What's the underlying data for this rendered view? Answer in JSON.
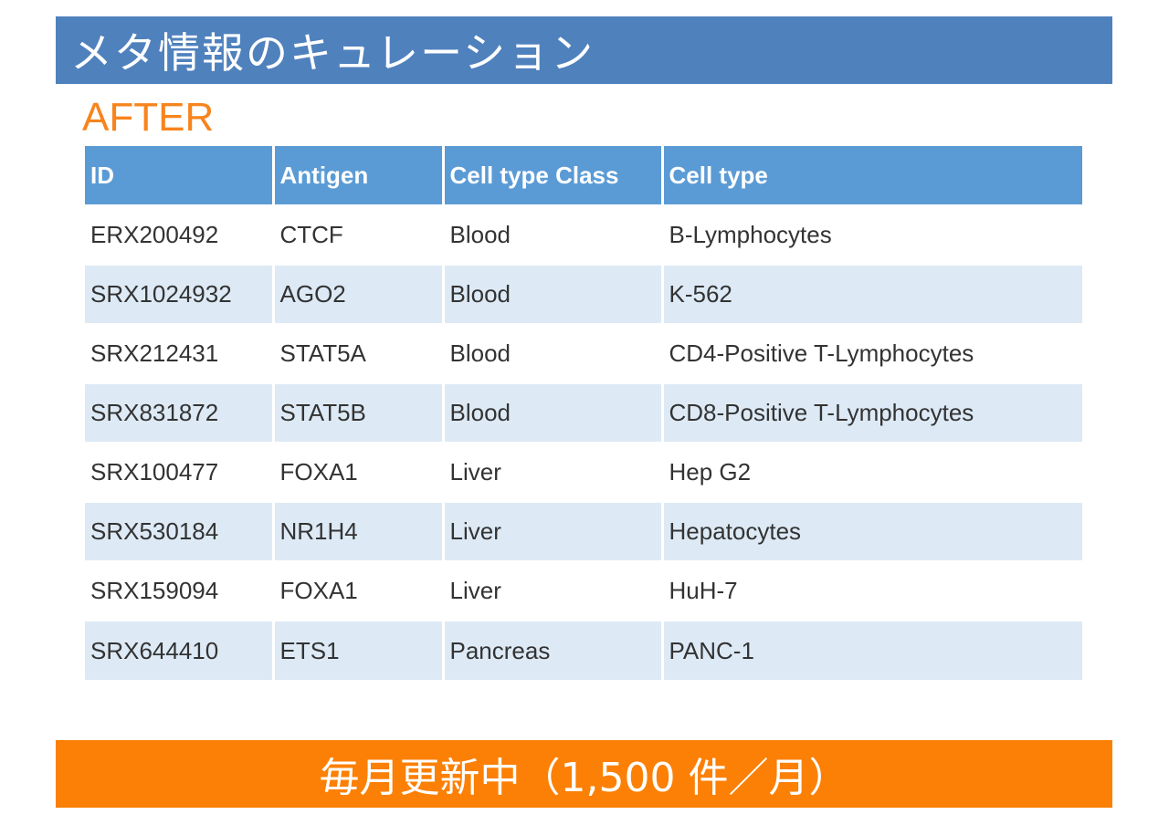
{
  "header": {
    "title": "メタ情報のキュレーション",
    "subtitle": "AFTER"
  },
  "table": {
    "columns": [
      "ID",
      "Antigen",
      "Cell type Class",
      "Cell type"
    ],
    "rows": [
      [
        "ERX200492",
        "CTCF",
        "Blood",
        "B-Lymphocytes"
      ],
      [
        "SRX1024932",
        "AGO2",
        "Blood",
        "K-562"
      ],
      [
        "SRX212431",
        "STAT5A",
        "Blood",
        "CD4-Positive T-Lymphocytes"
      ],
      [
        "SRX831872",
        "STAT5B",
        "Blood",
        "CD8-Positive T-Lymphocytes"
      ],
      [
        "SRX100477",
        "FOXA1",
        "Liver",
        "Hep G2"
      ],
      [
        "SRX530184",
        "NR1H4",
        "Liver",
        "Hepatocytes"
      ],
      [
        "SRX159094",
        "FOXA1",
        "Liver",
        "HuH-7"
      ],
      [
        "SRX644410",
        "ETS1",
        "Pancreas",
        "PANC-1"
      ]
    ]
  },
  "footer": {
    "text": "毎月更新中（1,500 件／月）"
  },
  "colors": {
    "title_bg": "#4f81bd",
    "subtitle": "#f7841c",
    "header_bg": "#5b9bd5",
    "stripe": "#ddeaf6",
    "footer_bg": "#fb8005"
  }
}
